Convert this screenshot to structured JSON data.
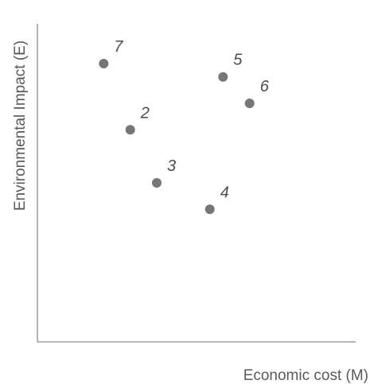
{
  "chart_data": {
    "type": "scatter",
    "title": "",
    "xlabel": "Economic cost (M)",
    "ylabel": "Environmental Impact (E)",
    "xlim": [
      0,
      12
    ],
    "ylim": [
      0,
      12
    ],
    "grid": false,
    "ticks": false,
    "point_color": "#767676",
    "points": [
      {
        "label": "7",
        "x": 2.5,
        "y": 10.5
      },
      {
        "label": "5",
        "x": 7.0,
        "y": 10.0
      },
      {
        "label": "6",
        "x": 8.0,
        "y": 9.0
      },
      {
        "label": "2",
        "x": 3.5,
        "y": 8.0
      },
      {
        "label": "3",
        "x": 4.5,
        "y": 6.0
      },
      {
        "label": "4",
        "x": 6.5,
        "y": 5.0
      }
    ]
  }
}
